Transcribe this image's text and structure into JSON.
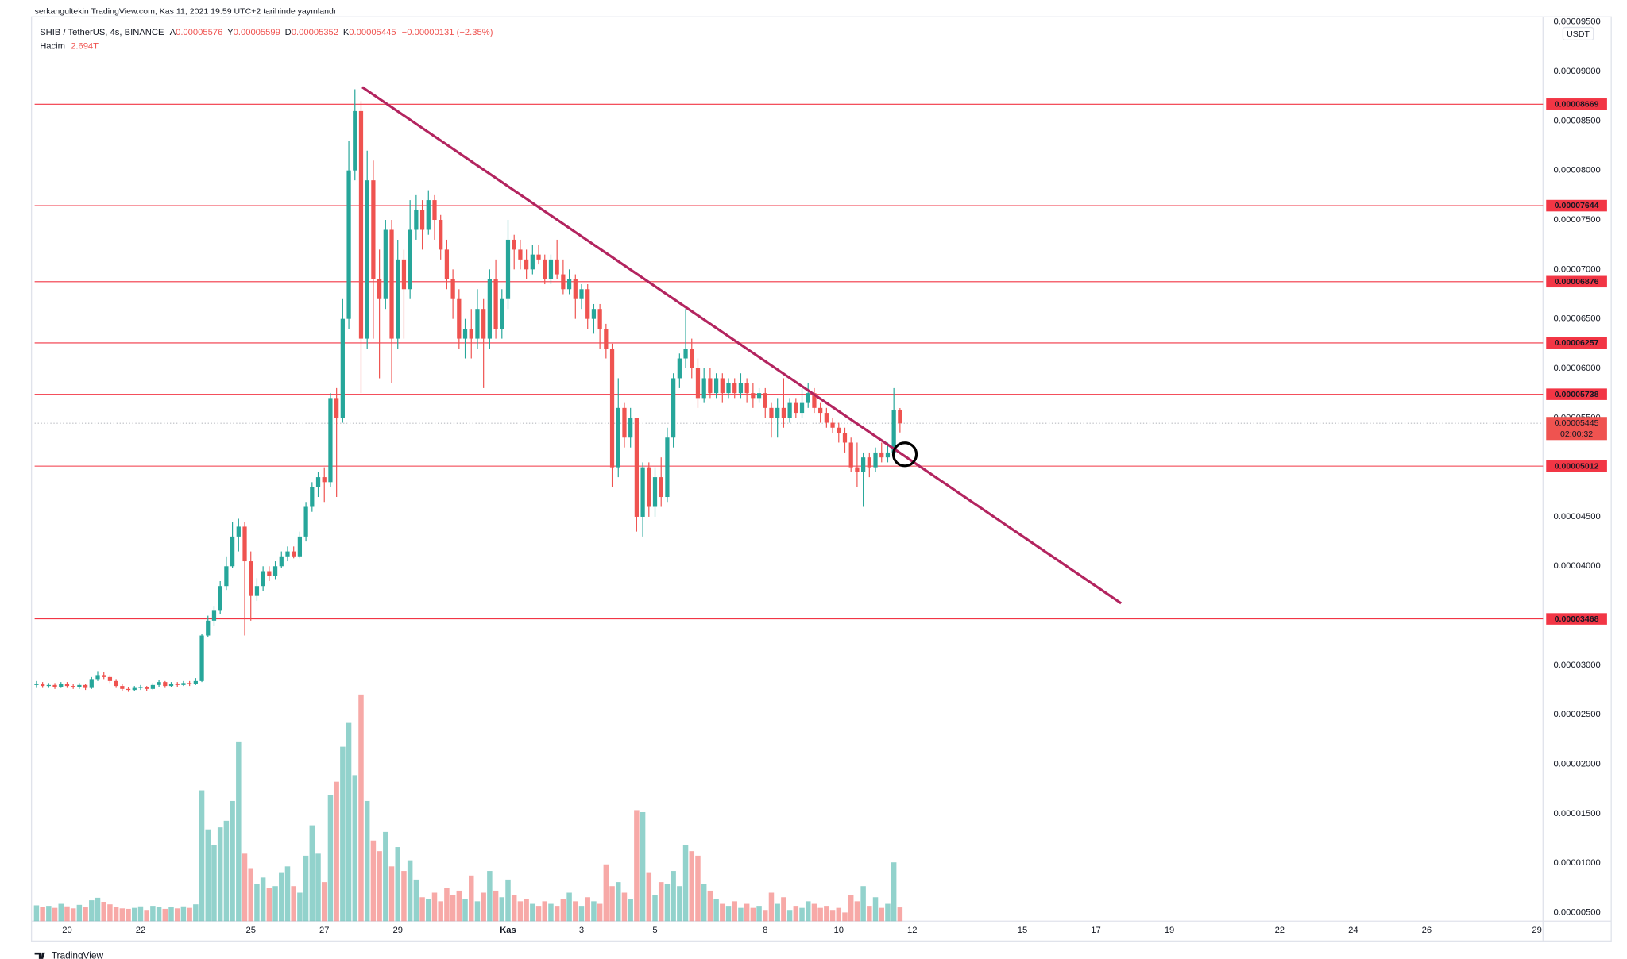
{
  "chart_data": {
    "type": "candlestick",
    "header": "serkangultekin TradingView.com, Kas 11, 2021 19:59 UTC+2 tarihinde yayınlandı",
    "legend": {
      "symbol": "SHIB / TetherUS, 4s, BINANCE",
      "ohlc": [
        {
          "key": "A",
          "value": "0.00005576"
        },
        {
          "key": "Y",
          "value": "0.00005599"
        },
        {
          "key": "D",
          "value": "0.00005352"
        },
        {
          "key": "K",
          "value": "0.00005445"
        }
      ],
      "change": "−0.00000131 (−2.35%)",
      "volume_name": "Hacim",
      "volume_value": "2.694T"
    },
    "currency": "USDT",
    "footer": "TradingView",
    "up_color": "#26a69a",
    "down_color": "#ef5350",
    "level_color": "#f23645",
    "grid": false,
    "xlim": [
      -0.3,
      246.0
    ],
    "xticks": [
      {
        "value": 5,
        "label": "20"
      },
      {
        "value": 17,
        "label": "22"
      },
      {
        "value": 35,
        "label": "25"
      },
      {
        "value": 47,
        "label": "27"
      },
      {
        "value": 59,
        "label": "29"
      },
      {
        "value": 77,
        "label": "Kas"
      },
      {
        "value": 89,
        "label": "3"
      },
      {
        "value": 101,
        "label": "5"
      },
      {
        "value": 119,
        "label": "8"
      },
      {
        "value": 131,
        "label": "10"
      },
      {
        "value": 143,
        "label": "12"
      },
      {
        "value": 161,
        "label": "15"
      },
      {
        "value": 173,
        "label": "17"
      },
      {
        "value": 185,
        "label": "19"
      },
      {
        "value": 203,
        "label": "22"
      },
      {
        "value": 215,
        "label": "24"
      },
      {
        "value": 227,
        "label": "26"
      },
      {
        "value": 245,
        "label": "29"
      }
    ],
    "ylim": [
      4.14e-06,
      9.509e-05
    ],
    "yticks": [
      {
        "value": 9.5e-05,
        "label": "0.00009500"
      },
      {
        "value": 9e-05,
        "label": "0.00009000"
      },
      {
        "value": 8.5e-05,
        "label": "0.00008500"
      },
      {
        "value": 8e-05,
        "label": "0.00008000"
      },
      {
        "value": 7.5e-05,
        "label": "0.00007500"
      },
      {
        "value": 7e-05,
        "label": "0.00007000"
      },
      {
        "value": 6.5e-05,
        "label": "0.00006500"
      },
      {
        "value": 6e-05,
        "label": "0.00006000"
      },
      {
        "value": 5.5e-05,
        "label": "0.00005500"
      },
      {
        "value": 4.5e-05,
        "label": "0.00004500"
      },
      {
        "value": 4e-05,
        "label": "0.00004000"
      },
      {
        "value": 3e-05,
        "label": "0.00003000"
      },
      {
        "value": 2.5e-05,
        "label": "0.00002500"
      },
      {
        "value": 2e-05,
        "label": "0.00002000"
      },
      {
        "value": 1.5e-05,
        "label": "0.00001500"
      },
      {
        "value": 1e-05,
        "label": "0.00001000"
      },
      {
        "value": 5e-06,
        "label": "0.00000500"
      }
    ],
    "levels": [
      {
        "value": 8.669e-05,
        "label": "0.00008669"
      },
      {
        "value": 7.644e-05,
        "label": "0.00007644"
      },
      {
        "value": 6.876e-05,
        "label": "0.00006876"
      },
      {
        "value": 6.257e-05,
        "label": "0.00006257"
      },
      {
        "value": 5.738e-05,
        "label": "0.00005738"
      },
      {
        "value": 5.012e-05,
        "label": "0.00005012"
      },
      {
        "value": 3.468e-05,
        "label": "0.00003468"
      }
    ],
    "last_price": {
      "value": 5.445e-05,
      "label": "0.00005445"
    },
    "countdown": "02:00:32",
    "trend_line": {
      "x": [
        53.2,
        177.1
      ],
      "y": [
        8.841e-05,
        3.626e-05
      ],
      "color": "#b3245f"
    },
    "circle": {
      "x": 141.8,
      "y": 5.131e-05
    },
    "candles": [
      [
        2.8e-05,
        2.84e-05,
        2.77e-05,
        2.81e-05
      ],
      [
        2.81e-05,
        2.83e-05,
        2.77e-05,
        2.79e-05
      ],
      [
        2.79e-05,
        2.82e-05,
        2.77e-05,
        2.8e-05
      ],
      [
        2.8e-05,
        2.82e-05,
        2.76e-05,
        2.78e-05
      ],
      [
        2.78e-05,
        2.83e-05,
        2.77e-05,
        2.81e-05
      ],
      [
        2.81e-05,
        2.83e-05,
        2.77e-05,
        2.79e-05
      ],
      [
        2.79e-05,
        2.81e-05,
        2.76e-05,
        2.78e-05
      ],
      [
        2.78e-05,
        2.82e-05,
        2.76e-05,
        2.8e-05
      ],
      [
        2.8e-05,
        2.81e-05,
        2.75e-05,
        2.77e-05
      ],
      [
        2.77e-05,
        2.88e-05,
        2.76e-05,
        2.86e-05
      ],
      [
        2.86e-05,
        2.94e-05,
        2.84e-05,
        2.9e-05
      ],
      [
        2.9e-05,
        2.93e-05,
        2.86e-05,
        2.88e-05
      ],
      [
        2.88e-05,
        2.9e-05,
        2.82e-05,
        2.84e-05
      ],
      [
        2.84e-05,
        2.86e-05,
        2.77e-05,
        2.79e-05
      ],
      [
        2.79e-05,
        2.81e-05,
        2.74e-05,
        2.76e-05
      ],
      [
        2.76e-05,
        2.78e-05,
        2.73e-05,
        2.75e-05
      ],
      [
        2.75e-05,
        2.79e-05,
        2.74e-05,
        2.77e-05
      ],
      [
        2.77e-05,
        2.8e-05,
        2.75e-05,
        2.78e-05
      ],
      [
        2.78e-05,
        2.79e-05,
        2.74e-05,
        2.76e-05
      ],
      [
        2.76e-05,
        2.82e-05,
        2.75e-05,
        2.8e-05
      ],
      [
        2.8e-05,
        2.85e-05,
        2.78e-05,
        2.83e-05
      ],
      [
        2.83e-05,
        2.84e-05,
        2.77e-05,
        2.79e-05
      ],
      [
        2.79e-05,
        2.83e-05,
        2.78e-05,
        2.81e-05
      ],
      [
        2.81e-05,
        2.83e-05,
        2.78e-05,
        2.8e-05
      ],
      [
        2.8e-05,
        2.84e-05,
        2.79e-05,
        2.82e-05
      ],
      [
        2.82e-05,
        2.84e-05,
        2.79e-05,
        2.81e-05
      ],
      [
        2.81e-05,
        2.87e-05,
        2.8e-05,
        2.84e-05
      ],
      [
        2.84e-05,
        3.32e-05,
        2.83e-05,
        3.3e-05
      ],
      [
        3.3e-05,
        3.5e-05,
        3.28e-05,
        3.45e-05
      ],
      [
        3.45e-05,
        3.6e-05,
        3.4e-05,
        3.55e-05
      ],
      [
        3.55e-05,
        3.85e-05,
        3.52e-05,
        3.8e-05
      ],
      [
        3.8e-05,
        4.1e-05,
        3.76e-05,
        4e-05
      ],
      [
        4e-05,
        4.45e-05,
        3.98e-05,
        4.3e-05
      ],
      [
        4.3e-05,
        4.48e-05,
        4.15e-05,
        4.4e-05
      ],
      [
        4.4e-05,
        4.45e-05,
        3.3e-05,
        4.05e-05
      ],
      [
        4.05e-05,
        4.15e-05,
        3.45e-05,
        3.7e-05
      ],
      [
        3.7e-05,
        3.88e-05,
        3.65e-05,
        3.8e-05
      ],
      [
        3.8e-05,
        4e-05,
        3.75e-05,
        3.95e-05
      ],
      [
        3.95e-05,
        4e-05,
        3.85e-05,
        3.9e-05
      ],
      [
        3.9e-05,
        4.05e-05,
        3.87e-05,
        4e-05
      ],
      [
        4e-05,
        4.15e-05,
        3.98e-05,
        4.1e-05
      ],
      [
        4.1e-05,
        4.2e-05,
        4.05e-05,
        4.15e-05
      ],
      [
        4.15e-05,
        4.2e-05,
        4.08e-05,
        4.1e-05
      ],
      [
        4.1e-05,
        4.35e-05,
        4.08e-05,
        4.3e-05
      ],
      [
        4.3e-05,
        4.65e-05,
        4.25e-05,
        4.6e-05
      ],
      [
        4.6e-05,
        4.85e-05,
        4.55e-05,
        4.8e-05
      ],
      [
        4.8e-05,
        4.95e-05,
        4.7e-05,
        4.9e-05
      ],
      [
        4.9e-05,
        5e-05,
        4.65e-05,
        4.85e-05
      ],
      [
        4.85e-05,
        5.75e-05,
        4.8e-05,
        5.7e-05
      ],
      [
        5.7e-05,
        5.8e-05,
        4.7e-05,
        5.5e-05
      ],
      [
        5.5e-05,
        6.7e-05,
        5.45e-05,
        6.5e-05
      ],
      [
        6.5e-05,
        8.3e-05,
        6.4e-05,
        8e-05
      ],
      [
        8e-05,
        8.82e-05,
        7.9e-05,
        8.6e-05
      ],
      [
        8.6e-05,
        8.7e-05,
        5.75e-05,
        6.3e-05
      ],
      [
        6.3e-05,
        8.2e-05,
        6.2e-05,
        7.9e-05
      ],
      [
        7.9e-05,
        8.1e-05,
        6.3e-05,
        6.9e-05
      ],
      [
        6.9e-05,
        7.2e-05,
        5.9e-05,
        6.7e-05
      ],
      [
        6.7e-05,
        7.5e-05,
        6.6e-05,
        7.4e-05
      ],
      [
        7.4e-05,
        7.5e-05,
        5.85e-05,
        6.3e-05
      ],
      [
        6.3e-05,
        7.3e-05,
        6.2e-05,
        7.1e-05
      ],
      [
        7.1e-05,
        7.2e-05,
        6.3e-05,
        6.8e-05
      ],
      [
        6.8e-05,
        7.7e-05,
        6.7e-05,
        7.4e-05
      ],
      [
        7.4e-05,
        7.75e-05,
        7.3e-05,
        7.6e-05
      ],
      [
        7.6e-05,
        7.7e-05,
        7.2e-05,
        7.4e-05
      ],
      [
        7.4e-05,
        7.8e-05,
        7.35e-05,
        7.7e-05
      ],
      [
        7.7e-05,
        7.75e-05,
        7.3e-05,
        7.5e-05
      ],
      [
        7.5e-05,
        7.55e-05,
        7.1e-05,
        7.2e-05
      ],
      [
        7.2e-05,
        7.3e-05,
        6.8e-05,
        6.9e-05
      ],
      [
        6.9e-05,
        7e-05,
        6.5e-05,
        6.7e-05
      ],
      [
        6.7e-05,
        6.8e-05,
        6.2e-05,
        6.3e-05
      ],
      [
        6.3e-05,
        6.5e-05,
        6.1e-05,
        6.4e-05
      ],
      [
        6.4e-05,
        6.6e-05,
        6.1e-05,
        6.3e-05
      ],
      [
        6.3e-05,
        6.8e-05,
        6.2e-05,
        6.6e-05
      ],
      [
        6.6e-05,
        6.7e-05,
        5.8e-05,
        6.3e-05
      ],
      [
        6.3e-05,
        7e-05,
        6.2e-05,
        6.9e-05
      ],
      [
        6.9e-05,
        7.1e-05,
        6.3e-05,
        6.4e-05
      ],
      [
        6.4e-05,
        6.8e-05,
        6.3e-05,
        6.7e-05
      ],
      [
        6.7e-05,
        7.5e-05,
        6.6e-05,
        7.3e-05
      ],
      [
        7.3e-05,
        7.35e-05,
        7e-05,
        7.2e-05
      ],
      [
        7.2e-05,
        7.3e-05,
        7e-05,
        7.1e-05
      ],
      [
        7.1e-05,
        7.2e-05,
        6.9e-05,
        7e-05
      ],
      [
        7e-05,
        7.25e-05,
        6.95e-05,
        7.15e-05
      ],
      [
        7.15e-05,
        7.25e-05,
        7.05e-05,
        7.1e-05
      ],
      [
        7.1e-05,
        7.15e-05,
        6.85e-05,
        6.9e-05
      ],
      [
        6.9e-05,
        7.15e-05,
        6.85e-05,
        7.1e-05
      ],
      [
        7.1e-05,
        7.3e-05,
        6.9e-05,
        6.95e-05
      ],
      [
        6.95e-05,
        7.1e-05,
        6.75e-05,
        6.8e-05
      ],
      [
        6.8e-05,
        7e-05,
        6.75e-05,
        6.9e-05
      ],
      [
        6.9e-05,
        6.95e-05,
        6.5e-05,
        6.7e-05
      ],
      [
        6.7e-05,
        6.85e-05,
        6.6e-05,
        6.8e-05
      ],
      [
        6.8e-05,
        6.85e-05,
        6.4e-05,
        6.5e-05
      ],
      [
        6.5e-05,
        6.65e-05,
        6.35e-05,
        6.6e-05
      ],
      [
        6.6e-05,
        6.65e-05,
        6.2e-05,
        6.4e-05
      ],
      [
        6.4e-05,
        6.45e-05,
        6.1e-05,
        6.2e-05
      ],
      [
        6.2e-05,
        6.25e-05,
        4.8e-05,
        5e-05
      ],
      [
        5e-05,
        5.9e-05,
        4.9e-05,
        5.6e-05
      ],
      [
        5.6e-05,
        5.65e-05,
        5.2e-05,
        5.3e-05
      ],
      [
        5.3e-05,
        5.6e-05,
        5.2e-05,
        5.5e-05
      ],
      [
        5.5e-05,
        5.5e-05,
        4.35e-05,
        4.5e-05
      ],
      [
        4.5e-05,
        5.05e-05,
        4.3e-05,
        5e-05
      ],
      [
        5e-05,
        5.05e-05,
        4.5e-05,
        4.6e-05
      ],
      [
        4.6e-05,
        5e-05,
        4.5e-05,
        4.9e-05
      ],
      [
        4.9e-05,
        5.1e-05,
        4.6e-05,
        4.7e-05
      ],
      [
        4.7e-05,
        5.4e-05,
        4.65e-05,
        5.3e-05
      ],
      [
        5.3e-05,
        5.95e-05,
        5.2e-05,
        5.9e-05
      ],
      [
        5.9e-05,
        6.15e-05,
        5.8e-05,
        6.1e-05
      ],
      [
        6.1e-05,
        6.6e-05,
        6e-05,
        6.2e-05
      ],
      [
        6.2e-05,
        6.3e-05,
        5.9e-05,
        6e-05
      ],
      [
        6e-05,
        6.1e-05,
        5.6e-05,
        5.7e-05
      ],
      [
        5.7e-05,
        6e-05,
        5.65e-05,
        5.9e-05
      ],
      [
        5.9e-05,
        6e-05,
        5.7e-05,
        5.75e-05
      ],
      [
        5.75e-05,
        5.95e-05,
        5.7e-05,
        5.9e-05
      ],
      [
        5.9e-05,
        5.95e-05,
        5.65e-05,
        5.75e-05
      ],
      [
        5.75e-05,
        5.9e-05,
        5.7e-05,
        5.85e-05
      ],
      [
        5.85e-05,
        5.9e-05,
        5.7e-05,
        5.75e-05
      ],
      [
        5.75e-05,
        5.95e-05,
        5.7e-05,
        5.85e-05
      ],
      [
        5.85e-05,
        5.9e-05,
        5.65e-05,
        5.75e-05
      ],
      [
        5.75e-05,
        5.85e-05,
        5.6e-05,
        5.7e-05
      ],
      [
        5.7e-05,
        5.8e-05,
        5.65e-05,
        5.75e-05
      ],
      [
        5.75e-05,
        5.8e-05,
        5.5e-05,
        5.6e-05
      ],
      [
        5.6e-05,
        5.65e-05,
        5.3e-05,
        5.5e-05
      ],
      [
        5.5e-05,
        5.7e-05,
        5.3e-05,
        5.6e-05
      ],
      [
        5.6e-05,
        5.9e-05,
        5.4e-05,
        5.5e-05
      ],
      [
        5.5e-05,
        5.7e-05,
        5.45e-05,
        5.65e-05
      ],
      [
        5.65e-05,
        5.7e-05,
        5.5e-05,
        5.55e-05
      ],
      [
        5.55e-05,
        5.8e-05,
        5.5e-05,
        5.65e-05
      ],
      [
        5.65e-05,
        5.85e-05,
        5.6e-05,
        5.75e-05
      ],
      [
        5.75e-05,
        5.8e-05,
        5.55e-05,
        5.6e-05
      ],
      [
        5.6e-05,
        5.65e-05,
        5.45e-05,
        5.55e-05
      ],
      [
        5.55e-05,
        5.6e-05,
        5.4e-05,
        5.45e-05
      ],
      [
        5.45e-05,
        5.5e-05,
        5.35e-05,
        5.4e-05
      ],
      [
        5.4e-05,
        5.45e-05,
        5.25e-05,
        5.35e-05
      ],
      [
        5.35e-05,
        5.4e-05,
        5.15e-05,
        5.25e-05
      ],
      [
        5.25e-05,
        5.3e-05,
        4.95e-05,
        5e-05
      ],
      [
        5e-05,
        5.25e-05,
        4.8e-05,
        4.95e-05
      ],
      [
        4.95e-05,
        5.15e-05,
        4.6e-05,
        5.1e-05
      ],
      [
        5.1e-05,
        5.15e-05,
        4.9e-05,
        5e-05
      ],
      [
        5e-05,
        5.2e-05,
        4.95e-05,
        5.15e-05
      ],
      [
        5.15e-05,
        5.25e-05,
        5.05e-05,
        5.1e-05
      ],
      [
        5.1e-05,
        5.25e-05,
        5.05e-05,
        5.15e-05
      ],
      [
        5.15e-05,
        5.8e-05,
        5.1e-05,
        5.576e-05
      ],
      [
        5.576e-05,
        5.599e-05,
        5.352e-05,
        5.445e-05
      ]
    ],
    "volumes": [
      3.1,
      2.8,
      3.0,
      2.6,
      3.4,
      2.9,
      2.5,
      3.2,
      2.7,
      4.1,
      4.6,
      3.8,
      3.3,
      2.8,
      2.5,
      2.4,
      2.6,
      2.9,
      2.2,
      3.0,
      2.8,
      2.4,
      2.7,
      2.5,
      2.9,
      2.6,
      3.3,
      25.8,
      18.1,
      15.0,
      18.5,
      19.8,
      23.7,
      35.3,
      13.3,
      10.3,
      7.3,
      8.6,
      6.5,
      6.9,
      9.5,
      10.8,
      6.9,
      5.6,
      12.9,
      18.9,
      13.3,
      7.7,
      24.9,
      27.5,
      34.4,
      39.1,
      28.8,
      44.7,
      23.7,
      15.9,
      13.8,
      17.6,
      10.8,
      14.6,
      9.9,
      12.0,
      8.2,
      4.7,
      4.3,
      5.6,
      3.9,
      6.5,
      5.2,
      6.0,
      4.3,
      9.0,
      3.9,
      5.6,
      9.9,
      6.0,
      4.7,
      8.2,
      5.2,
      3.9,
      4.3,
      3.4,
      3.0,
      3.9,
      3.4,
      3.0,
      4.3,
      5.6,
      3.9,
      3.0,
      4.7,
      3.9,
      3.4,
      11.2,
      6.9,
      7.7,
      5.6,
      4.3,
      21.9,
      21.5,
      9.5,
      5.2,
      7.7,
      7.3,
      9.9,
      6.9,
      15.0,
      13.8,
      12.9,
      7.3,
      6.0,
      4.3,
      3.4,
      3.0,
      3.9,
      2.6,
      3.4,
      2.6,
      3.0,
      2.2,
      5.6,
      3.4,
      4.7,
      2.2,
      3.0,
      2.6,
      3.9,
      3.4,
      2.6,
      3.0,
      2.2,
      2.6,
      1.7,
      5.2,
      3.9,
      6.9,
      3.0,
      4.7,
      2.6,
      3.4,
      11.6,
      2.694
    ]
  }
}
